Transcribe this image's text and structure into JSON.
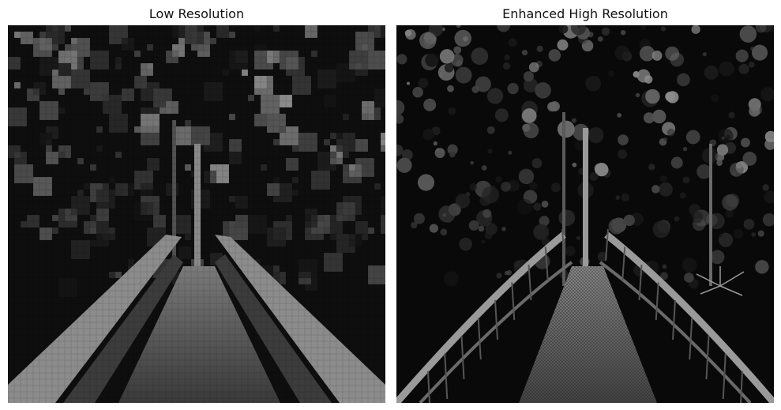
{
  "figure": {
    "panels": [
      {
        "title": "Low Resolution",
        "image": "forest-bridge-pixelated-grayscale"
      },
      {
        "title": "Enhanced High Resolution",
        "image": "forest-bridge-sharp-grayscale"
      }
    ]
  }
}
